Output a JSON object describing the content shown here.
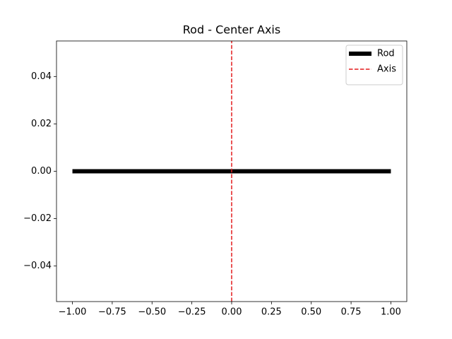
{
  "chart_data": {
    "type": "line",
    "title": "Rod - Center Axis",
    "series": [
      {
        "name": "Rod",
        "color": "#000000",
        "linewidth": 6,
        "linestyle": "solid",
        "x": [
          -1,
          1
        ],
        "values": [
          0,
          0
        ]
      },
      {
        "name": "Axis",
        "color": "#e41a1c",
        "linewidth": 1.5,
        "linestyle": "dashed",
        "x": [
          0,
          0
        ],
        "values": [
          -0.055,
          0.055
        ]
      }
    ],
    "xlim": [
      -1.1,
      1.1
    ],
    "xticks": [
      {
        "value": -1,
        "label": "−1.00"
      },
      {
        "value": -0.75,
        "label": "−0.75"
      },
      {
        "value": -0.5,
        "label": "−0.50"
      },
      {
        "value": -0.25,
        "label": "−0.25"
      },
      {
        "value": 0,
        "label": "0.00"
      },
      0.25,
      {
        "value": 0.5,
        "label": "0.50"
      },
      0.75,
      {
        "value": 1,
        "label": "1.00"
      }
    ],
    "ylim": [
      -0.055,
      0.055
    ],
    "yticks": [
      {
        "value": -0.04,
        "label": "−0.04"
      },
      {
        "value": -0.02,
        "label": "−0.02"
      },
      {
        "value": 0,
        "label": "0.00"
      },
      0.02,
      0.04
    ],
    "grid": false,
    "legend": "upper right"
  }
}
